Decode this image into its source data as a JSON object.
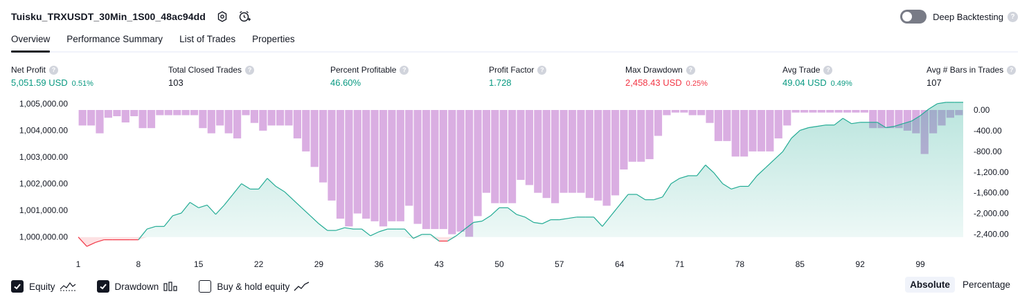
{
  "header": {
    "title": "Tuisku_TRXUSDT_30Min_1S00_48ac94dd",
    "deep_backtesting_label": "Deep Backtesting",
    "help_glyph": "?"
  },
  "tabs": [
    {
      "label": "Overview",
      "active": true
    },
    {
      "label": "Performance Summary",
      "active": false
    },
    {
      "label": "List of Trades",
      "active": false
    },
    {
      "label": "Properties",
      "active": false
    }
  ],
  "metrics": [
    {
      "label": "Net Profit",
      "value": "5,051.59 USD",
      "pct": "0.51%",
      "tone": "pos"
    },
    {
      "label": "Total Closed Trades",
      "value": "103",
      "pct": "",
      "tone": "neu"
    },
    {
      "label": "Percent Profitable",
      "value": "46.60%",
      "pct": "",
      "tone": "pos"
    },
    {
      "label": "Profit Factor",
      "value": "1.728",
      "pct": "",
      "tone": "pos"
    },
    {
      "label": "Max Drawdown",
      "value": "2,458.43 USD",
      "pct": "0.25%",
      "tone": "neg"
    },
    {
      "label": "Avg Trade",
      "value": "49.04 USD",
      "pct": "0.49%",
      "tone": "pos"
    },
    {
      "label": "Avg # Bars in Trades",
      "value": "107",
      "pct": "",
      "tone": "neu"
    }
  ],
  "footer": {
    "equity_label": "Equity",
    "drawdown_label": "Drawdown",
    "buyhold_label": "Buy & hold equity",
    "equity_checked": true,
    "drawdown_checked": true,
    "buyhold_checked": false,
    "mode_absolute": "Absolute",
    "mode_percentage": "Percentage",
    "active_mode": "Absolute"
  },
  "colors": {
    "equity_line": "#22ab94",
    "equity_fill": "#22ab94",
    "equity_below_line": "#f23645",
    "drawdown_bar": "#ce93d8",
    "drawdown_overlap": "#5b7bd5",
    "positive": "#089981",
    "negative": "#f23645"
  },
  "chart_data": {
    "type": "area",
    "x_tick_labels": [
      "1",
      "8",
      "15",
      "22",
      "29",
      "36",
      "43",
      "50",
      "57",
      "64",
      "71",
      "78",
      "85",
      "92",
      "99"
    ],
    "left_axis": {
      "label": "Equity",
      "ylim": [
        999500,
        1005150
      ],
      "tick_labels": [
        "1,005,000.00",
        "1,004,000.00",
        "1,003,000.00",
        "1,002,000.00",
        "1,001,000.00",
        "1,000,000.00"
      ],
      "tick_values": [
        1005000,
        1004000,
        1003000,
        1002000,
        1001000,
        1000000
      ]
    },
    "right_axis": {
      "label": "Drawdown",
      "ylim": [
        -2580,
        120
      ],
      "tick_labels": [
        "0.00",
        "-400.00",
        "-800.00",
        "-1,200.00",
        "-1,600.00",
        "-2,000.00",
        "-2,400.00"
      ],
      "tick_values": [
        0,
        -400,
        -800,
        -1200,
        -1600,
        -2000,
        -2400
      ]
    },
    "series": [
      {
        "name": "Equity",
        "type": "area",
        "baseline": 1000000,
        "x": [
          1,
          2,
          3,
          4,
          5,
          6,
          7,
          8,
          9,
          10,
          11,
          12,
          13,
          14,
          15,
          16,
          17,
          18,
          19,
          20,
          21,
          22,
          23,
          24,
          25,
          26,
          27,
          28,
          29,
          30,
          31,
          32,
          33,
          34,
          35,
          36,
          37,
          38,
          39,
          40,
          41,
          42,
          43,
          44,
          45,
          46,
          47,
          48,
          49,
          50,
          51,
          52,
          53,
          54,
          55,
          56,
          57,
          58,
          59,
          60,
          61,
          62,
          63,
          64,
          65,
          66,
          67,
          68,
          69,
          70,
          71,
          72,
          73,
          74,
          75,
          76,
          77,
          78,
          79,
          80,
          81,
          82,
          83,
          84,
          85,
          86,
          87,
          88,
          89,
          90,
          91,
          92,
          93,
          94,
          95,
          96,
          97,
          98,
          99,
          100,
          101,
          102,
          103,
          104
        ],
        "values": [
          1000000,
          999650,
          999800,
          999900,
          999900,
          999900,
          999900,
          999900,
          1000300,
          1000400,
          1000400,
          1000800,
          1000900,
          1001300,
          1001100,
          1001200,
          1000850,
          1001200,
          1001600,
          1002000,
          1001800,
          1001800,
          1002200,
          1001900,
          1001700,
          1001400,
          1001100,
          1000800,
          1000500,
          1000250,
          1000250,
          1000350,
          1000300,
          1000300,
          1000050,
          1000200,
          1000300,
          1000300,
          1000300,
          999950,
          1000100,
          1000100,
          999850,
          999850,
          1000050,
          1000300,
          1000550,
          1000600,
          1000800,
          1001100,
          1001100,
          1000850,
          1000750,
          1000550,
          1000500,
          1000650,
          1000650,
          1000700,
          1000750,
          1000750,
          1000750,
          1000400,
          1000800,
          1001200,
          1001600,
          1001600,
          1001400,
          1001400,
          1001500,
          1002000,
          1002200,
          1002300,
          1002300,
          1002700,
          1002400,
          1002000,
          1001800,
          1001900,
          1001900,
          1002300,
          1002600,
          1002900,
          1003200,
          1003700,
          1004000,
          1004100,
          1004150,
          1004200,
          1004200,
          1004450,
          1004250,
          1004300,
          1004300,
          1004300,
          1004100,
          1004150,
          1004250,
          1004350,
          1004550,
          1004800,
          1005000,
          1005050,
          1005050,
          1005050
        ]
      },
      {
        "name": "Drawdown",
        "type": "bar",
        "x": [
          1,
          2,
          3,
          4,
          5,
          6,
          7,
          8,
          9,
          10,
          11,
          12,
          13,
          14,
          15,
          16,
          17,
          18,
          19,
          20,
          21,
          22,
          23,
          24,
          25,
          26,
          27,
          28,
          29,
          30,
          31,
          32,
          33,
          34,
          35,
          36,
          37,
          38,
          39,
          40,
          41,
          42,
          43,
          44,
          45,
          46,
          47,
          48,
          49,
          50,
          51,
          52,
          53,
          54,
          55,
          56,
          57,
          58,
          59,
          60,
          61,
          62,
          63,
          64,
          65,
          66,
          67,
          68,
          69,
          70,
          71,
          72,
          73,
          74,
          75,
          76,
          77,
          78,
          79,
          80,
          81,
          82,
          83,
          84,
          85,
          86,
          87,
          88,
          89,
          90,
          91,
          92,
          93,
          94,
          95,
          96,
          97,
          98,
          99,
          100,
          101,
          102,
          103
        ],
        "values": [
          -300,
          -300,
          -450,
          -150,
          -120,
          -240,
          -120,
          -350,
          -350,
          -100,
          -100,
          -100,
          -100,
          -100,
          -350,
          -450,
          -300,
          -450,
          -550,
          -100,
          -250,
          -400,
          -300,
          -300,
          -300,
          -550,
          -800,
          -1100,
          -1400,
          -1750,
          -2100,
          -2250,
          -2000,
          -2100,
          -2150,
          -2250,
          -2150,
          -2150,
          -1850,
          -2200,
          -2300,
          -2300,
          -2300,
          -2400,
          -2350,
          -2450,
          -2050,
          -1600,
          -1800,
          -1800,
          -1800,
          -1350,
          -1450,
          -1600,
          -1700,
          -1800,
          -1600,
          -1600,
          -1600,
          -1700,
          -1750,
          -1850,
          -1650,
          -1150,
          -1000,
          -1000,
          -950,
          -500,
          -100,
          -50,
          -50,
          -100,
          -100,
          -250,
          -600,
          -600,
          -900,
          -900,
          -800,
          -800,
          -800,
          -550,
          -300,
          -50,
          -50,
          -50,
          -50,
          -50,
          -50,
          -50,
          -50,
          -50,
          -350,
          -350,
          -350,
          -350,
          -400,
          -450,
          -850,
          -450,
          -300,
          -150,
          -100
        ]
      }
    ]
  }
}
